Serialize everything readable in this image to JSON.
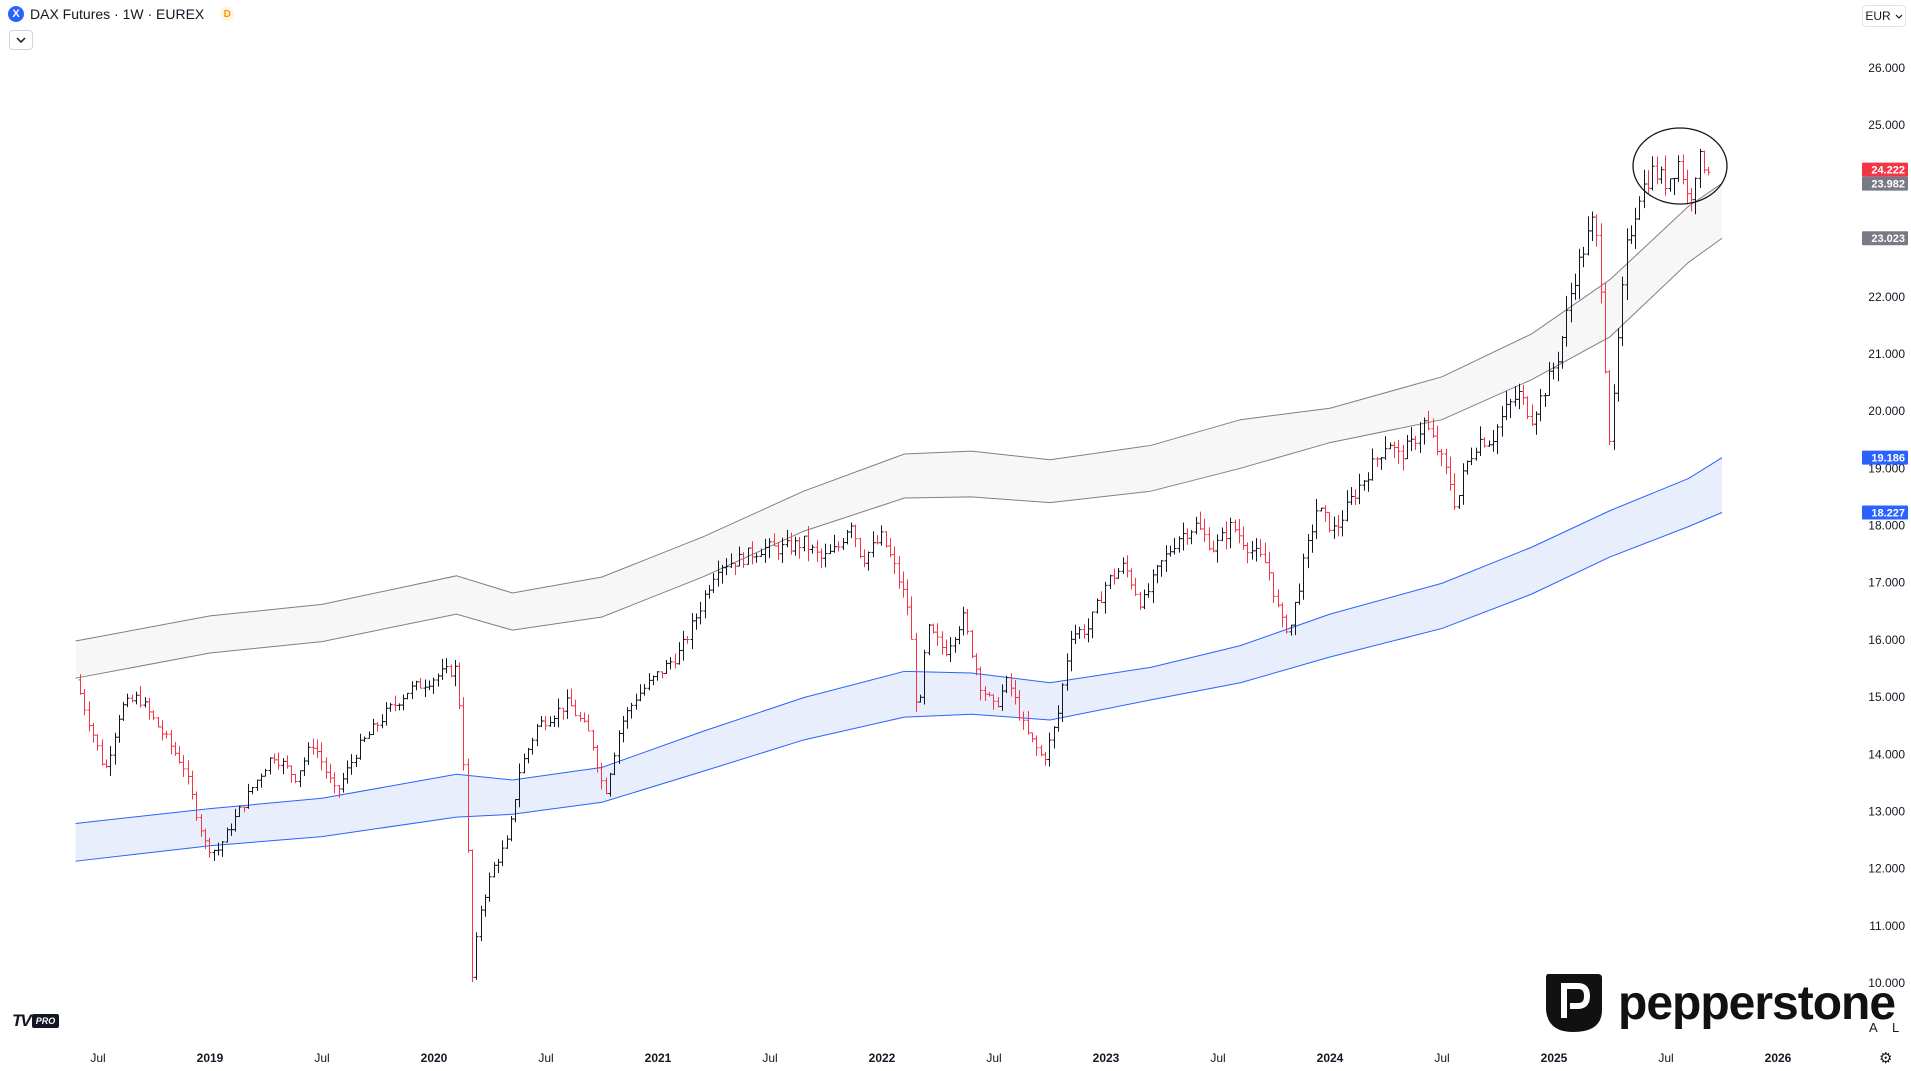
{
  "header": {
    "symbol_icon": "X",
    "title": "DAX Futures · 1W · EUREX",
    "delay_badge": "D",
    "collapse_icon": "chevron-down-icon"
  },
  "currency": {
    "label": "EUR",
    "icon": "chevron-down-icon"
  },
  "branding": {
    "tv_logo": "TV",
    "tv_pro": "PRO",
    "pepperstone": "pepperstone"
  },
  "scale_buttons": {
    "auto": "A",
    "log": "L"
  },
  "settings_icon": "gear-icon",
  "colors": {
    "up": "#131722",
    "down": "#f23645",
    "upper_band": "#808080",
    "lower_band": "#2962ff",
    "lower_fill": "#e8eefc",
    "upper_fill": "#f7f7f7",
    "tag_red": "#f23645",
    "tag_gray": "#787b86",
    "tag_blue": "#2962ff"
  },
  "chart_data": {
    "type": "ohlc",
    "timeframe": "1W",
    "x_ticks": [
      "Jul",
      "2019",
      "Jul",
      "2020",
      "Jul",
      "2021",
      "Jul",
      "2022",
      "Jul",
      "2023",
      "Jul",
      "2024",
      "Jul",
      "2025",
      "Jul",
      "2026"
    ],
    "y_ticks": [
      "26.000",
      "25.000",
      "24.000",
      "23.000",
      "22.000",
      "21.000",
      "20.000",
      "19.000",
      "18.000",
      "17.000",
      "16.000",
      "15.000",
      "14.000",
      "13.000",
      "12.000",
      "11.000",
      "10.000"
    ],
    "price_tags": [
      {
        "label": "24.222",
        "value": 24222,
        "style": "red"
      },
      {
        "label": "23.982",
        "value": 23982,
        "style": "gray"
      },
      {
        "label": "23.023",
        "value": 23023,
        "style": "gray"
      },
      {
        "label": "19.186",
        "value": 19186,
        "style": "blue"
      },
      {
        "label": "18.227",
        "value": 18227,
        "style": "blue"
      }
    ],
    "ylim": [
      9500,
      26800
    ],
    "price_path": [
      [
        2018.42,
        15300
      ],
      [
        2018.55,
        13700
      ],
      [
        2018.62,
        14800
      ],
      [
        2018.7,
        15000
      ],
      [
        2018.8,
        14400
      ],
      [
        2018.9,
        13800
      ],
      [
        2019.0,
        12400
      ],
      [
        2019.05,
        12300
      ],
      [
        2019.12,
        12800
      ],
      [
        2019.22,
        13500
      ],
      [
        2019.3,
        14000
      ],
      [
        2019.4,
        13600
      ],
      [
        2019.48,
        14200
      ],
      [
        2019.58,
        13300
      ],
      [
        2019.68,
        14100
      ],
      [
        2019.8,
        14700
      ],
      [
        2019.9,
        15100
      ],
      [
        2020.05,
        15400
      ],
      [
        2020.12,
        15500
      ],
      [
        2020.16,
        13400
      ],
      [
        2020.19,
        10000
      ],
      [
        2020.22,
        11200
      ],
      [
        2020.28,
        12000
      ],
      [
        2020.35,
        12500
      ],
      [
        2020.4,
        13700
      ],
      [
        2020.48,
        14500
      ],
      [
        2020.55,
        14700
      ],
      [
        2020.62,
        14900
      ],
      [
        2020.72,
        14300
      ],
      [
        2020.78,
        13300
      ],
      [
        2020.85,
        14500
      ],
      [
        2020.92,
        15000
      ],
      [
        2021.02,
        15400
      ],
      [
        2021.12,
        15800
      ],
      [
        2021.2,
        16500
      ],
      [
        2021.28,
        17300
      ],
      [
        2021.38,
        17400
      ],
      [
        2021.48,
        17600
      ],
      [
        2021.58,
        17600
      ],
      [
        2021.67,
        17700
      ],
      [
        2021.75,
        17400
      ],
      [
        2021.82,
        17600
      ],
      [
        2021.88,
        18100
      ],
      [
        2021.93,
        17400
      ],
      [
        2022.02,
        17800
      ],
      [
        2022.08,
        17200
      ],
      [
        2022.14,
        16500
      ],
      [
        2022.18,
        14500
      ],
      [
        2022.22,
        16200
      ],
      [
        2022.3,
        15800
      ],
      [
        2022.38,
        16400
      ],
      [
        2022.46,
        15200
      ],
      [
        2022.52,
        14800
      ],
      [
        2022.58,
        15300
      ],
      [
        2022.66,
        14400
      ],
      [
        2022.74,
        13900
      ],
      [
        2022.8,
        14600
      ],
      [
        2022.86,
        16100
      ],
      [
        2022.94,
        16200
      ],
      [
        2023.02,
        17000
      ],
      [
        2023.1,
        17300
      ],
      [
        2023.18,
        16600
      ],
      [
        2023.26,
        17300
      ],
      [
        2023.34,
        17800
      ],
      [
        2023.42,
        18000
      ],
      [
        2023.5,
        17600
      ],
      [
        2023.58,
        18000
      ],
      [
        2023.66,
        17600
      ],
      [
        2023.74,
        17300
      ],
      [
        2023.8,
        16300
      ],
      [
        2023.84,
        16200
      ],
      [
        2023.9,
        17300
      ],
      [
        2023.96,
        18300
      ],
      [
        2024.04,
        17900
      ],
      [
        2024.12,
        18500
      ],
      [
        2024.2,
        19000
      ],
      [
        2024.28,
        19500
      ],
      [
        2024.32,
        19200
      ],
      [
        2024.38,
        19400
      ],
      [
        2024.44,
        19800
      ],
      [
        2024.5,
        19300
      ],
      [
        2024.56,
        18700
      ],
      [
        2024.58,
        18300
      ],
      [
        2024.62,
        19000
      ],
      [
        2024.68,
        19500
      ],
      [
        2024.74,
        19500
      ],
      [
        2024.8,
        20000
      ],
      [
        2024.86,
        20300
      ],
      [
        2024.92,
        19900
      ],
      [
        2024.98,
        20400
      ],
      [
        2025.04,
        21000
      ],
      [
        2025.1,
        22200
      ],
      [
        2025.14,
        22700
      ],
      [
        2025.19,
        23300
      ],
      [
        2025.22,
        22800
      ],
      [
        2025.25,
        20600
      ],
      [
        2025.27,
        19300
      ],
      [
        2025.3,
        21000
      ],
      [
        2025.34,
        22800
      ],
      [
        2025.4,
        23800
      ],
      [
        2025.46,
        24200
      ],
      [
        2025.52,
        24000
      ],
      [
        2025.58,
        24400
      ],
      [
        2025.62,
        23600
      ],
      [
        2025.66,
        24400
      ],
      [
        2025.7,
        24300
      ]
    ],
    "upper_channel": {
      "top": [
        [
          2018.4,
          15980
        ],
        [
          2019.0,
          16420
        ],
        [
          2019.5,
          16620
        ],
        [
          2020.1,
          17120
        ],
        [
          2020.35,
          16820
        ],
        [
          2020.75,
          17100
        ],
        [
          2021.2,
          17800
        ],
        [
          2021.65,
          18600
        ],
        [
          2022.1,
          19250
        ],
        [
          2022.4,
          19300
        ],
        [
          2022.75,
          19150
        ],
        [
          2023.2,
          19400
        ],
        [
          2023.6,
          19850
        ],
        [
          2024.0,
          20050
        ],
        [
          2024.5,
          20600
        ],
        [
          2024.9,
          21350
        ],
        [
          2025.25,
          22300
        ],
        [
          2025.6,
          23580
        ],
        [
          2025.75,
          23982
        ]
      ],
      "bottom": [
        [
          2018.4,
          15330
        ],
        [
          2019.0,
          15770
        ],
        [
          2019.5,
          15970
        ],
        [
          2020.1,
          16450
        ],
        [
          2020.35,
          16170
        ],
        [
          2020.75,
          16400
        ],
        [
          2021.2,
          17100
        ],
        [
          2021.65,
          17900
        ],
        [
          2022.1,
          18480
        ],
        [
          2022.4,
          18500
        ],
        [
          2022.75,
          18400
        ],
        [
          2023.2,
          18600
        ],
        [
          2023.6,
          19000
        ],
        [
          2024.0,
          19450
        ],
        [
          2024.5,
          19850
        ],
        [
          2024.9,
          20550
        ],
        [
          2025.25,
          21300
        ],
        [
          2025.6,
          22600
        ],
        [
          2025.75,
          23023
        ]
      ]
    },
    "lower_channel": {
      "top": [
        [
          2018.4,
          12790
        ],
        [
          2019.0,
          13050
        ],
        [
          2019.5,
          13230
        ],
        [
          2020.1,
          13650
        ],
        [
          2020.35,
          13550
        ],
        [
          2020.75,
          13770
        ],
        [
          2021.2,
          14400
        ],
        [
          2021.65,
          14990
        ],
        [
          2022.1,
          15450
        ],
        [
          2022.4,
          15420
        ],
        [
          2022.75,
          15250
        ],
        [
          2023.2,
          15520
        ],
        [
          2023.6,
          15900
        ],
        [
          2024.0,
          16450
        ],
        [
          2024.5,
          16990
        ],
        [
          2024.9,
          17620
        ],
        [
          2025.25,
          18260
        ],
        [
          2025.6,
          18820
        ],
        [
          2025.75,
          19186
        ]
      ],
      "bottom": [
        [
          2018.4,
          12130
        ],
        [
          2019.0,
          12400
        ],
        [
          2019.5,
          12560
        ],
        [
          2020.1,
          12900
        ],
        [
          2020.35,
          12950
        ],
        [
          2020.75,
          13160
        ],
        [
          2021.2,
          13700
        ],
        [
          2021.65,
          14250
        ],
        [
          2022.1,
          14650
        ],
        [
          2022.4,
          14700
        ],
        [
          2022.75,
          14600
        ],
        [
          2023.2,
          14950
        ],
        [
          2023.6,
          15250
        ],
        [
          2024.0,
          15700
        ],
        [
          2024.5,
          16200
        ],
        [
          2024.9,
          16800
        ],
        [
          2025.25,
          17450
        ],
        [
          2025.6,
          17980
        ],
        [
          2025.75,
          18227
        ]
      ]
    },
    "annotation": {
      "shape": "ellipse",
      "around": "recent highs 2025"
    }
  }
}
